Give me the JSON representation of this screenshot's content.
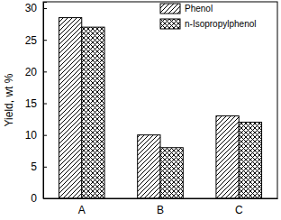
{
  "chart_data": {
    "type": "bar",
    "y_label": "Yield, wt %",
    "categories": [
      "A",
      "B",
      "C"
    ],
    "series": [
      {
        "name": "Phenol",
        "color": "#000000",
        "values": [
          28.5,
          10,
          13
        ]
      },
      {
        "name": "n-Isopropylphenol",
        "color": "#000000",
        "values": [
          27,
          8,
          12
        ]
      }
    ],
    "ylim": [
      0,
      31
    ],
    "yticks": [
      0,
      5,
      10,
      15,
      20,
      25,
      30
    ],
    "grid": false,
    "legend": "upper right"
  }
}
